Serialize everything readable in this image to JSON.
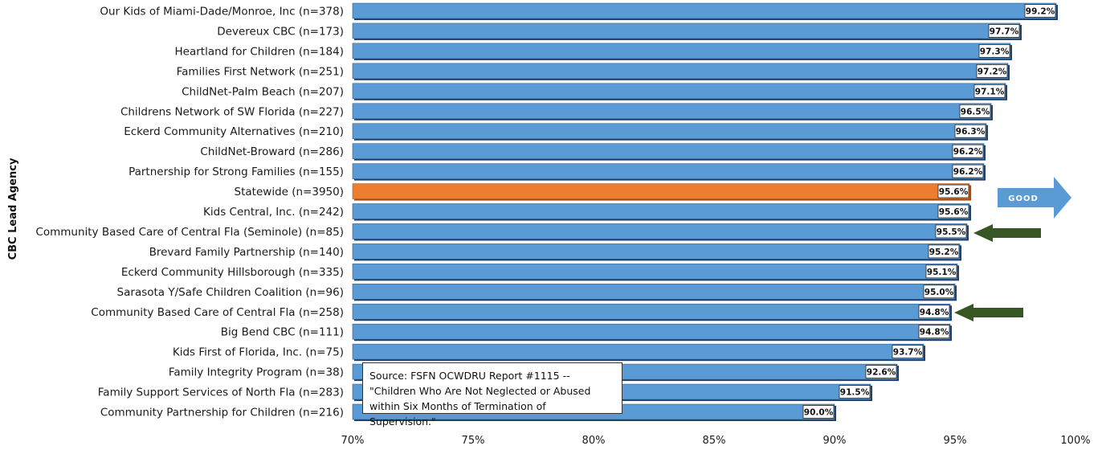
{
  "chart_data": {
    "type": "bar",
    "orientation": "horizontal",
    "ylabel": "CBC Lead Agency",
    "xlabel": "",
    "xlim": [
      70,
      100
    ],
    "xticks": [
      "70%",
      "75%",
      "80%",
      "85%",
      "90%",
      "95%",
      "100%"
    ],
    "categories": [
      "Our Kids of Miami-Dade/Monroe, Inc (n=378)",
      "Devereux CBC (n=173)",
      "Heartland for Children (n=184)",
      "Families First Network (n=251)",
      "ChildNet-Palm Beach (n=207)",
      "Childrens Network of SW Florida (n=227)",
      "Eckerd Community Alternatives (n=210)",
      "ChildNet-Broward (n=286)",
      "Partnership for Strong Families (n=155)",
      "Statewide (n=3950)",
      "Kids Central, Inc. (n=242)",
      "Community Based Care of Central Fla (Seminole) (n=85)",
      "Brevard Family Partnership (n=140)",
      "Eckerd Community Hillsborough (n=335)",
      "Sarasota Y/Safe Children Coalition (n=96)",
      "Community Based Care of Central Fla (n=258)",
      "Big Bend CBC (n=111)",
      "Kids First of Florida, Inc. (n=75)",
      "Family Integrity Program (n=38)",
      "Family Support Services of North Fla (n=283)",
      "Community Partnership for Children (n=216)"
    ],
    "values": [
      99.2,
      97.7,
      97.3,
      97.2,
      97.1,
      96.5,
      96.3,
      96.2,
      96.2,
      95.6,
      95.6,
      95.5,
      95.2,
      95.1,
      95.0,
      94.8,
      94.8,
      93.7,
      92.6,
      91.5,
      90.0
    ],
    "value_labels": [
      "99.2%",
      "97.7%",
      "97.3%",
      "97.2%",
      "97.1%",
      "96.5%",
      "96.3%",
      "96.2%",
      "96.2%",
      "95.6%",
      "95.6%",
      "95.5%",
      "95.2%",
      "95.1%",
      "95.0%",
      "94.8%",
      "94.8%",
      "93.7%",
      "92.6%",
      "91.5%",
      "90.0%"
    ],
    "highlight_index": 9,
    "highlight_arrow_indices": [
      11,
      15
    ],
    "colors": {
      "bar": "#5b9bd5",
      "bar_edge": "#1f3d66",
      "highlight": "#ed7d31",
      "arrow": "#375623",
      "good_arrow": "#5b9bd5"
    },
    "annotations": {
      "good_label": "GOOD",
      "source": "Source: FSFN OCWDRU Report #1115  -- \"Children Who Are Not Neglected or Abused within Six Months of Termination of Supervision.\""
    }
  }
}
